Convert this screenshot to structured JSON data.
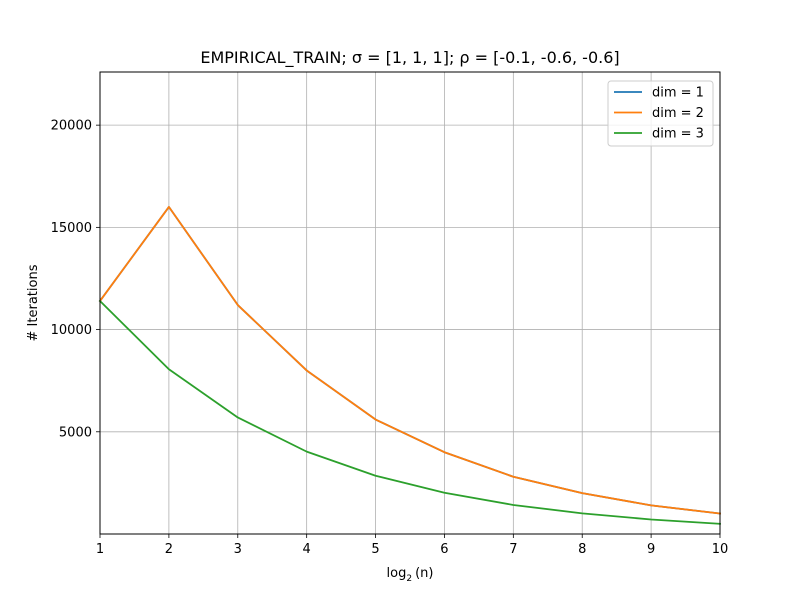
{
  "chart_data": {
    "type": "line",
    "title": "EMPIRICAL_TRAIN;  σ = [1, 1, 1];  ρ = [-0.1, -0.6, -0.6]",
    "xlabel": "log",
    "xlabel_sub": "2",
    "xlabel_arg": "(n)",
    "ylabel": "# Iterations",
    "xlim": [
      1,
      10
    ],
    "ylim": [
      0,
      22600
    ],
    "xticks": [
      1,
      2,
      3,
      4,
      5,
      6,
      7,
      8,
      9,
      10
    ],
    "yticks": [
      5000,
      10000,
      15000,
      20000
    ],
    "grid": true,
    "legend_position": "top-right",
    "x": [
      1,
      2,
      3,
      4,
      5,
      6,
      7,
      8,
      9,
      10
    ],
    "series": [
      {
        "name": "dim = 1",
        "color": "#1f77b4",
        "values": [
          11400,
          16000,
          11200,
          8000,
          5600,
          4000,
          2800,
          2000,
          1400,
          1000
        ]
      },
      {
        "name": "dim = 2",
        "color": "#ff7f0e",
        "values": [
          11400,
          16000,
          11200,
          8000,
          5600,
          4000,
          2800,
          2000,
          1400,
          1000
        ]
      },
      {
        "name": "dim = 3",
        "color": "#2ca02c",
        "values": [
          11400,
          8060,
          5700,
          4030,
          2850,
          2020,
          1420,
          1010,
          710,
          500
        ]
      }
    ]
  }
}
